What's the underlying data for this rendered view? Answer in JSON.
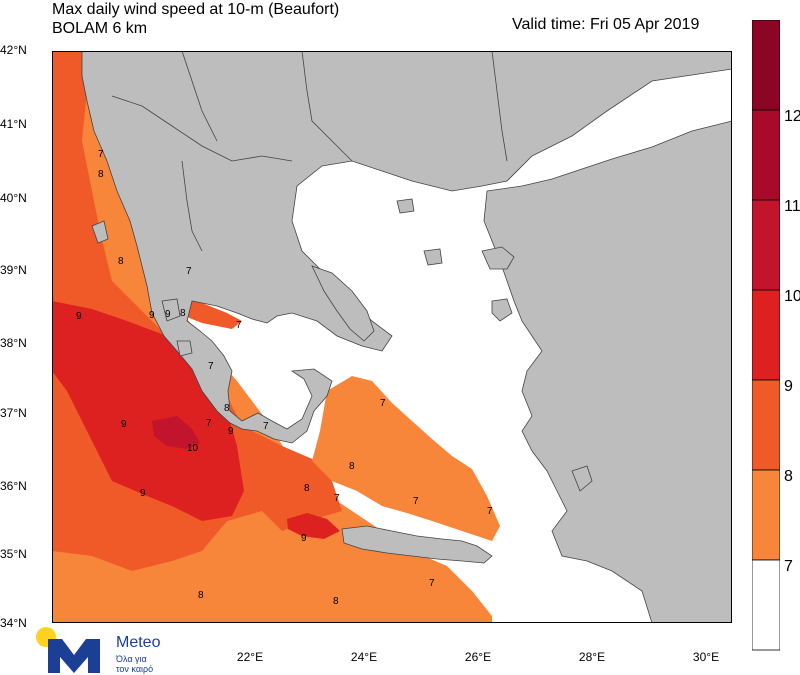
{
  "header": {
    "title": "Max daily wind speed at 10-m (Beaufort)",
    "model": "BOLAM 6 km",
    "valid_time": "Valid time: Fri 05 Apr 2019"
  },
  "axes": {
    "lat_labels": [
      "42°N",
      "41°N",
      "40°N",
      "39°N",
      "38°N",
      "37°N",
      "36°N",
      "35°N",
      "34°N"
    ],
    "lon_labels": [
      "22°E",
      "24°E",
      "26°E",
      "28°E",
      "30°E"
    ]
  },
  "legend": {
    "labels": [
      "12",
      "11",
      "10",
      "9",
      "8",
      "7"
    ],
    "colors": [
      "#ffffff",
      "#f7853a",
      "#f05a28",
      "#dd2020",
      "#c3142d",
      "#a80a2a",
      "#8c0524"
    ]
  },
  "contour_labels": [
    "7",
    "8",
    "8",
    "9",
    "9",
    "9",
    "8",
    "7",
    "7",
    "7",
    "8",
    "9",
    "7",
    "9",
    "10",
    "9",
    "7",
    "8",
    "8",
    "7",
    "7",
    "7",
    "9",
    "7",
    "8",
    "8",
    "7"
  ],
  "logo": {
    "name": "Meteo",
    "tagline_1": "Όλα για",
    "tagline_2": "τον καιρό"
  },
  "colors": {
    "land": "#bdbdbd",
    "sea_calm": "#ffffff",
    "beaufort_7": "#f7853a",
    "beaufort_8": "#f05a28",
    "beaufort_9": "#dd2020",
    "beaufort_10": "#c3142d",
    "border": "#444444",
    "logo_blue": "#1a3f95",
    "logo_yellow": "#ffd21f"
  }
}
